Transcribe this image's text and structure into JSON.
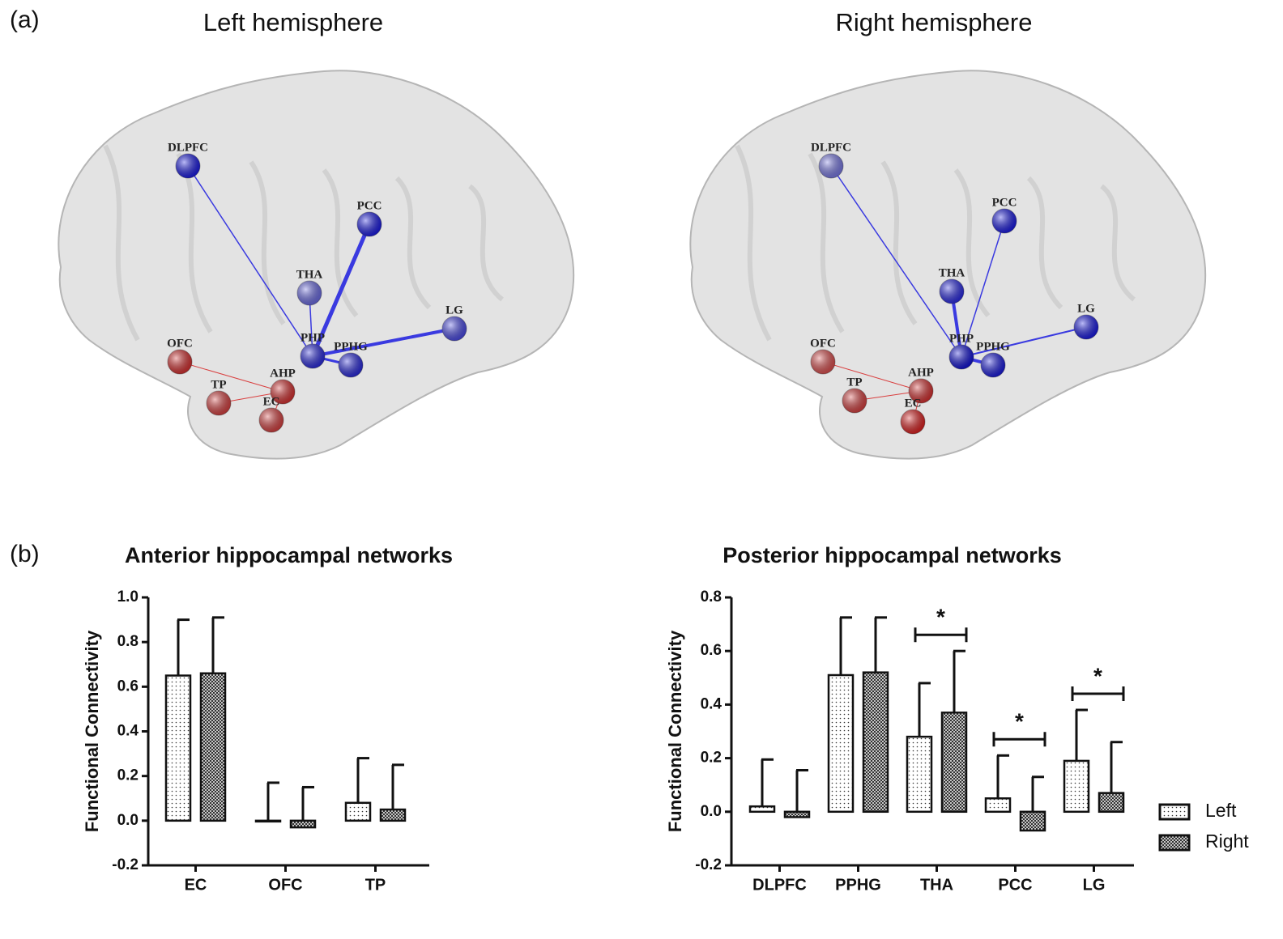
{
  "panel_labels": [
    "(a)",
    "(b)"
  ],
  "brains": [
    {
      "title": "Left hemisphere",
      "nodes": [
        {
          "label": "DLPFC",
          "color": "#1a1ae6"
        },
        {
          "label": "PCC",
          "color": "#1a1ae6"
        },
        {
          "label": "THA",
          "color": "#6b6be6"
        },
        {
          "label": "OFC",
          "color": "#d93030"
        },
        {
          "label": "PHP",
          "color": "#2a2ae0"
        },
        {
          "label": "PPHG",
          "color": "#2a2ae0"
        },
        {
          "label": "LG",
          "color": "#4a4ae8"
        },
        {
          "label": "TP",
          "color": "#d94040"
        },
        {
          "label": "AHP",
          "color": "#d93030"
        },
        {
          "label": "EC",
          "color": "#d94040"
        }
      ]
    },
    {
      "title": "Right hemisphere",
      "nodes": [
        {
          "label": "DLPFC",
          "color": "#7a7ae8"
        },
        {
          "label": "PCC",
          "color": "#1a1ae6"
        },
        {
          "label": "THA",
          "color": "#2a2ae6"
        },
        {
          "label": "OFC",
          "color": "#e05050"
        },
        {
          "label": "PHP",
          "color": "#1010d8"
        },
        {
          "label": "PPHG",
          "color": "#1a1ae0"
        },
        {
          "label": "LG",
          "color": "#1a1ae6"
        },
        {
          "label": "TP",
          "color": "#d94040"
        },
        {
          "label": "AHP",
          "color": "#d93030"
        },
        {
          "label": "EC",
          "color": "#e02020"
        }
      ]
    }
  ],
  "chart_data": [
    {
      "type": "bar",
      "title": "Anterior hippocampal networks",
      "y_label": "Functional Connectivity",
      "categories": [
        "EC",
        "OFC",
        "TP"
      ],
      "series": [
        {
          "name": "Left",
          "color": "#ffffff",
          "pattern": "dots",
          "values": [
            0.65,
            0.0,
            0.08
          ],
          "errors": [
            0.25,
            0.17,
            0.2
          ]
        },
        {
          "name": "Right",
          "color": "#ffffff",
          "pattern": "crosshatch",
          "values": [
            0.66,
            -0.03,
            0.05
          ],
          "errors": [
            0.25,
            0.18,
            0.2
          ]
        }
      ],
      "ylim": [
        -0.2,
        1.0
      ],
      "yticks": [
        -0.2,
        {
          "value": 0,
          "label": "0.0"
        },
        0.2,
        0.4,
        0.6,
        0.8,
        {
          "value": 1,
          "label": "1.0"
        }
      ],
      "legend": false
    },
    {
      "type": "bar",
      "title": "Posterior hippocampal networks",
      "y_label": "Functional Connectivity",
      "categories": [
        "DLPFC",
        "PPHG",
        "THA",
        "PCC",
        "LG"
      ],
      "series": [
        {
          "name": "Left",
          "color": "#ffffff",
          "pattern": "dots",
          "values": [
            0.02,
            0.51,
            0.28,
            0.05,
            0.19
          ],
          "errors": [
            0.175,
            0.215,
            0.2,
            0.16,
            0.19
          ]
        },
        {
          "name": "Right",
          "color": "#ffffff",
          "pattern": "crosshatch",
          "values": [
            -0.02,
            0.52,
            0.37,
            -0.07,
            0.07
          ],
          "errors": [
            0.175,
            0.205,
            0.23,
            0.2,
            0.19
          ]
        }
      ],
      "ylim": [
        -0.2,
        0.8
      ],
      "yticks": [
        -0.2,
        {
          "value": 0,
          "label": "0.0"
        },
        0.2,
        0.4,
        0.6,
        0.8
      ],
      "annotations": [
        {
          "text": "*",
          "category": "THA"
        },
        {
          "text": "*",
          "category": "PCC"
        },
        {
          "text": "*",
          "category": "LG"
        }
      ],
      "legend": "lower right"
    }
  ]
}
